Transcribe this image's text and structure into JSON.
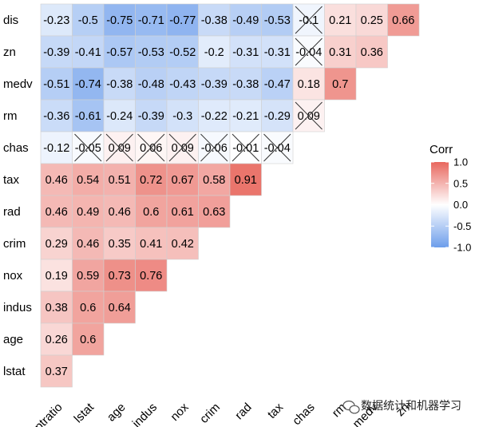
{
  "chart_data": {
    "type": "heatmap",
    "row_labels": [
      "dis",
      "zn",
      "medv",
      "rm",
      "chas",
      "tax",
      "rad",
      "crim",
      "nox",
      "indus",
      "age",
      "lstat"
    ],
    "col_labels": [
      "ptratio",
      "lstat",
      "age",
      "indus",
      "nox",
      "crim",
      "rad",
      "tax",
      "chas",
      "rm",
      "medv",
      "zn"
    ],
    "values": [
      [
        -0.23,
        -0.5,
        -0.75,
        -0.71,
        -0.77,
        -0.38,
        -0.49,
        -0.53,
        -0.1,
        0.21,
        0.25,
        0.66
      ],
      [
        -0.39,
        -0.41,
        -0.57,
        -0.53,
        -0.52,
        -0.2,
        -0.31,
        -0.31,
        -0.04,
        0.31,
        0.36
      ],
      [
        -0.51,
        -0.74,
        -0.38,
        -0.48,
        -0.43,
        -0.39,
        -0.38,
        -0.47,
        0.18,
        0.7
      ],
      [
        -0.36,
        -0.61,
        -0.24,
        -0.39,
        -0.3,
        -0.22,
        -0.21,
        -0.29,
        0.09
      ],
      [
        -0.12,
        -0.05,
        0.09,
        0.06,
        0.09,
        -0.06,
        -0.01,
        -0.04
      ],
      [
        0.46,
        0.54,
        0.51,
        0.72,
        0.67,
        0.58,
        0.91
      ],
      [
        0.46,
        0.49,
        0.46,
        0.6,
        0.61,
        0.63
      ],
      [
        0.29,
        0.46,
        0.35,
        0.41,
        0.42
      ],
      [
        0.19,
        0.59,
        0.73,
        0.76
      ],
      [
        0.38,
        0.6,
        0.64
      ],
      [
        0.26,
        0.6
      ],
      [
        0.37
      ]
    ],
    "labels": [
      [
        "-0.23",
        "-0.5",
        "-0.75",
        "-0.71",
        "-0.77",
        "-0.38",
        "-0.49",
        "-0.53",
        "-0.1",
        "0.21",
        "0.25",
        "0.66"
      ],
      [
        "-0.39",
        "-0.41",
        "-0.57",
        "-0.53",
        "-0.52",
        "-0.2",
        "-0.31",
        "-0.31",
        "-0.04",
        "0.31",
        "0.36"
      ],
      [
        "-0.51",
        "-0.74",
        "-0.38",
        "-0.48",
        "-0.43",
        "-0.39",
        "-0.38",
        "-0.47",
        "0.18",
        "0.7"
      ],
      [
        "-0.36",
        "-0.61",
        "-0.24",
        "-0.39",
        "-0.3",
        "-0.22",
        "-0.21",
        "-0.29",
        "0.09"
      ],
      [
        "-0.12",
        "-0.05",
        "0.09",
        "0.06",
        "0.09",
        "-0.06",
        "-0.01",
        "-0.04"
      ],
      [
        "0.46",
        "0.54",
        "0.51",
        "0.72",
        "0.67",
        "0.58",
        "0.91"
      ],
      [
        "0.46",
        "0.49",
        "0.46",
        "0.6",
        "0.61",
        "0.63"
      ],
      [
        "0.29",
        "0.46",
        "0.35",
        "0.41",
        "0.42"
      ],
      [
        "0.19",
        "0.59",
        "0.73",
        "0.76"
      ],
      [
        "0.38",
        "0.6",
        "0.64"
      ],
      [
        "0.26",
        "0.6"
      ],
      [
        "0.37"
      ]
    ],
    "insignificant": [
      [
        0,
        8
      ],
      [
        1,
        8
      ],
      [
        3,
        8
      ],
      [
        4,
        1
      ],
      [
        4,
        2
      ],
      [
        4,
        3
      ],
      [
        4,
        4
      ],
      [
        4,
        5
      ],
      [
        4,
        6
      ],
      [
        4,
        7
      ]
    ],
    "legend": {
      "title": "Corr",
      "ticks": [
        "1.0",
        "0.5",
        "0.0",
        "-0.5",
        "-1.0"
      ],
      "tick_values": [
        1.0,
        0.5,
        0.0,
        -0.5,
        -1.0
      ],
      "placement": "right"
    },
    "colors": {
      "low": "#6d9eeb",
      "mid": "#ffffff",
      "high": "#e8675e"
    },
    "value_range": [
      -1,
      1
    ]
  },
  "watermark": {
    "text": "数据统计和机器学习",
    "icon": "wechat-icon"
  }
}
